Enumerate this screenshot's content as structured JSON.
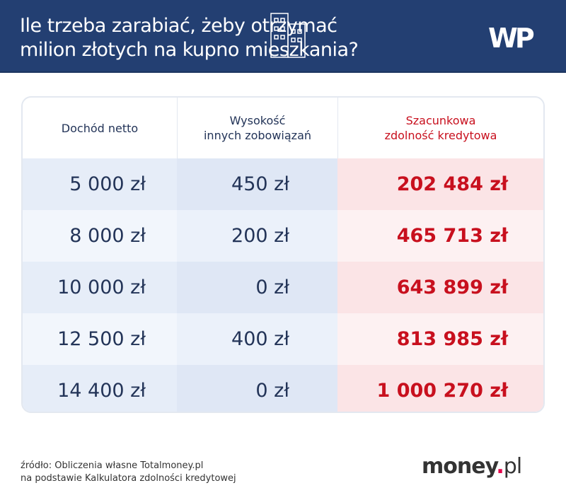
{
  "header": {
    "title_line1": "Ile trzeba zarabiać, żeby otrzymać",
    "title_line2": "milion złotych na kupno mieszkania?",
    "logo": "WP"
  },
  "chart_data": {
    "type": "table",
    "columns": [
      "Dochód netto",
      "Wysokość innych zobowiązań",
      "Szacunkowa zdolność kredytowa"
    ],
    "column_lines": [
      [
        "Dochód netto"
      ],
      [
        "Wysokość",
        "innych zobowiązań"
      ],
      [
        "Szacunkowa",
        "zdolność kredytowa"
      ]
    ],
    "rows": [
      [
        "5 000 zł",
        "450 zł",
        "202 484 zł"
      ],
      [
        "8 000 zł",
        "200 zł",
        "465 713 zł"
      ],
      [
        "10 000 zł",
        "0 zł",
        "643 899 zł"
      ],
      [
        "12 500 zł",
        "400 zł",
        "813 985 zł"
      ],
      [
        "14 400 zł",
        "0 zł",
        "1 000 270 zł"
      ]
    ]
  },
  "footer": {
    "source_line1": "źródło: Obliczenia własne Totalmoney.pl",
    "source_line2": "na podstawie Kalkulatora zdolności kredytowej",
    "logo_main": "money",
    "logo_dot": ".",
    "logo_tld": "pl"
  },
  "colors": {
    "header_bg": "#233f72",
    "accent_red": "#c8101e"
  }
}
